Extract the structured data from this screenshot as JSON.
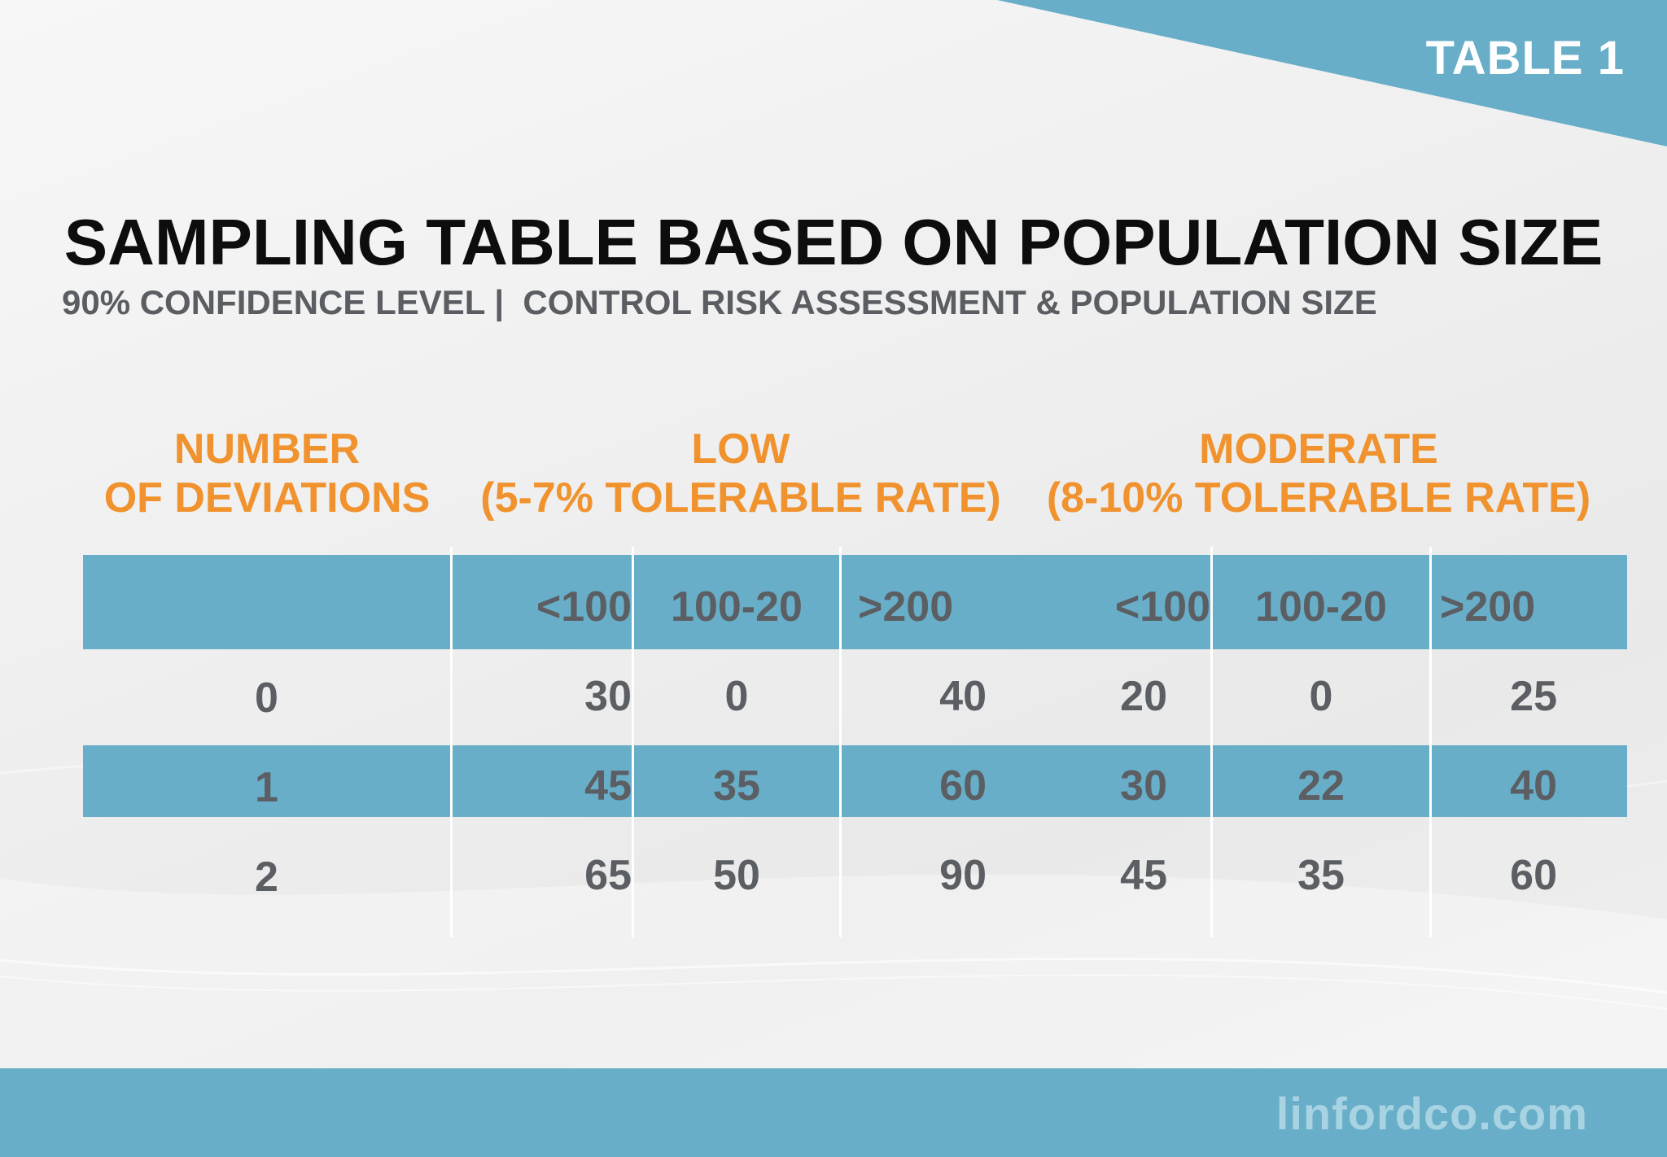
{
  "badge": "TABLE 1",
  "title": "SAMPLING TABLE BASED ON POPULATION SIZE",
  "subtitle": "90% CONFIDENCE LEVEL |  CONTROL RISK ASSESSMENT & POPULATION SIZE",
  "headers": {
    "deviations": [
      "NUMBER",
      "OF DEVIATIONS"
    ],
    "low": [
      "LOW",
      "(5-7% TOLERABLE RATE)"
    ],
    "moderate": [
      "MODERATE",
      "(8-10% TOLERABLE RATE)"
    ]
  },
  "columns": [
    "<100",
    "100-20",
    ">200",
    "<100",
    "100-20",
    ">200"
  ],
  "rows": [
    {
      "deviations": "0",
      "values": [
        "30",
        "0",
        "40",
        "20",
        "0",
        "25"
      ]
    },
    {
      "deviations": "1",
      "values": [
        "45",
        "35",
        "60",
        "30",
        "22",
        "40"
      ]
    },
    {
      "deviations": "2",
      "values": [
        "65",
        "50",
        "90",
        "45",
        "35",
        "60"
      ]
    }
  ],
  "footer": "linfordco.com",
  "colors": {
    "accent_blue": "#68aec8",
    "orange": "#f0922d",
    "title": "#0d0d0d",
    "text_gray": "#5b5e62"
  }
}
